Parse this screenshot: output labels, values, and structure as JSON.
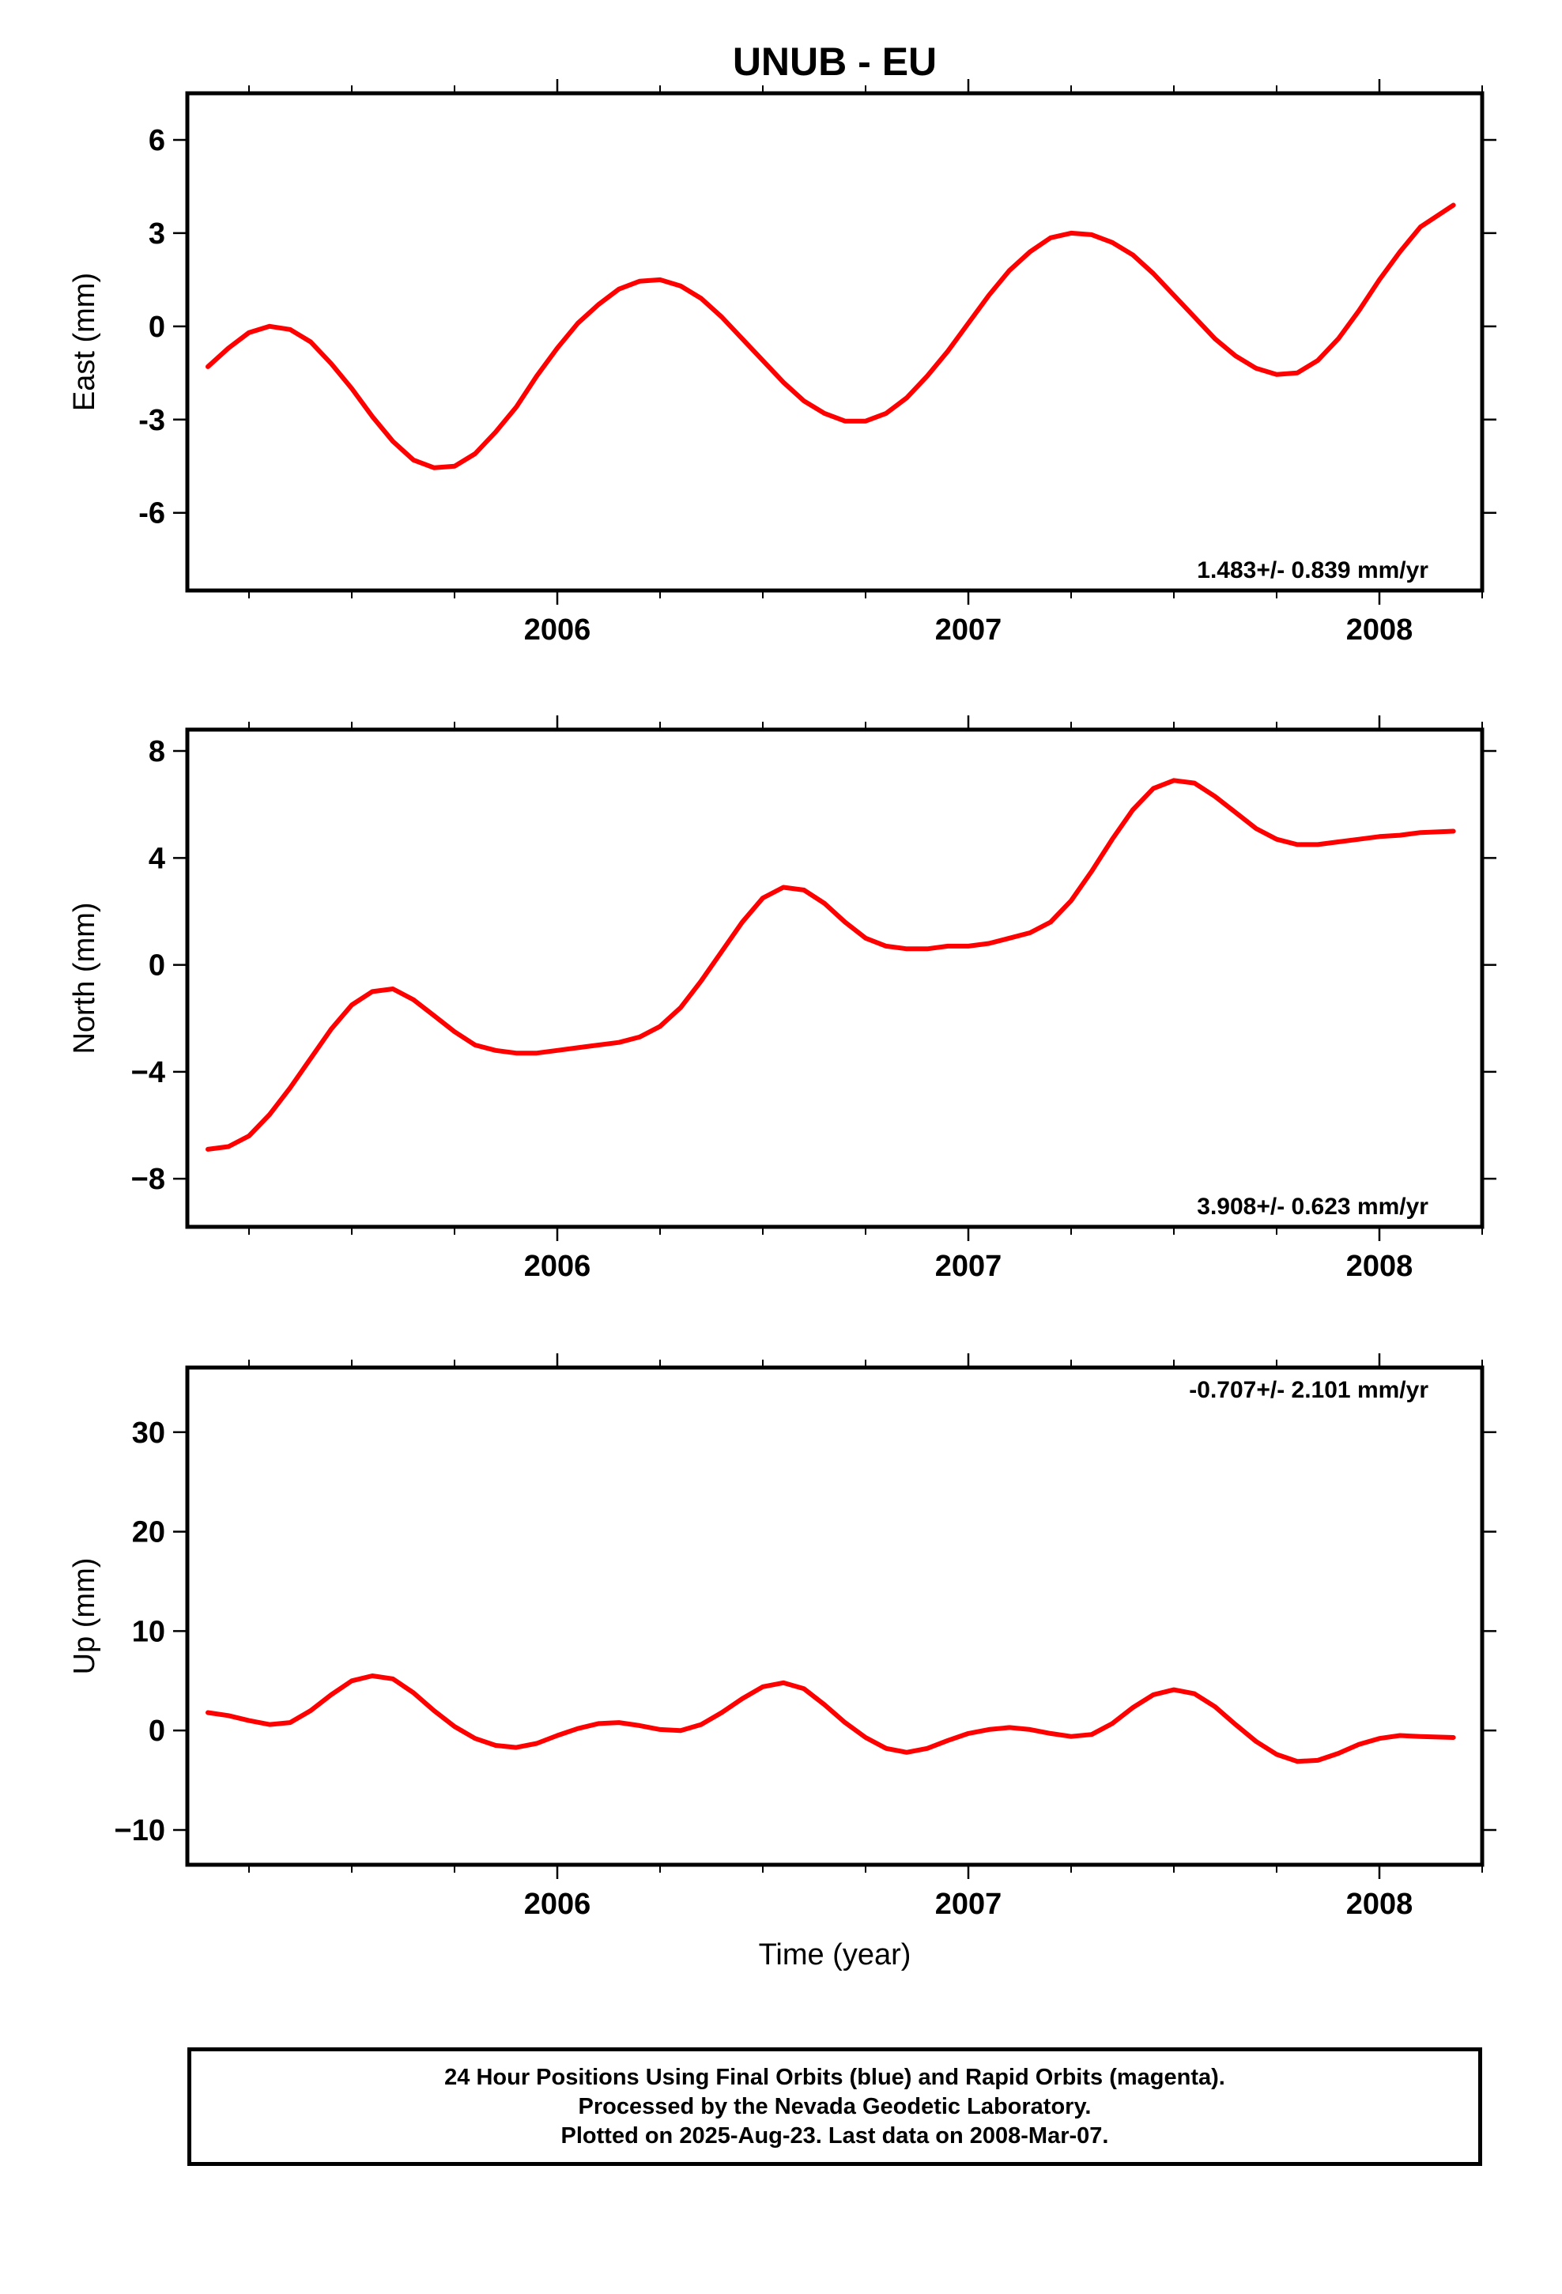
{
  "title": "UNUB - EU",
  "colors": {
    "data": "#0000ff",
    "fit": "#ff0000",
    "frame": "#000000"
  },
  "chart_data": [
    {
      "type": "scatter",
      "id": "east",
      "ylabel": "East (mm)",
      "ylim": [
        -8.5,
        7.5
      ],
      "yticks": [
        6,
        3,
        0,
        -3,
        -6
      ],
      "ytick_labels": [
        "6",
        "3",
        "0",
        "-3",
        "-6"
      ],
      "xlim": [
        2005.1,
        2008.25
      ],
      "xticks": [
        2006,
        2007,
        2008
      ],
      "xtick_labels": [
        "2006",
        "2007",
        "2008"
      ],
      "rate_label": "1.483+/- 0.839 mm/yr",
      "rate_position": "bottom-right",
      "series": [],
      "fit": {
        "x": [
          2005.15,
          2005.2,
          2005.25,
          2005.3,
          2005.35,
          2005.4,
          2005.45,
          2005.5,
          2005.55,
          2005.6,
          2005.65,
          2005.7,
          2005.75,
          2005.8,
          2005.85,
          2005.9,
          2005.95,
          2006.0,
          2006.05,
          2006.1,
          2006.15,
          2006.2,
          2006.25,
          2006.3,
          2006.35,
          2006.4,
          2006.45,
          2006.5,
          2006.55,
          2006.6,
          2006.65,
          2006.7,
          2006.75,
          2006.8,
          2006.85,
          2006.9,
          2006.95,
          2007.0,
          2007.05,
          2007.1,
          2007.15,
          2007.2,
          2007.25,
          2007.3,
          2007.35,
          2007.4,
          2007.45,
          2007.5,
          2007.55,
          2007.6,
          2007.65,
          2007.7,
          2007.75,
          2007.8,
          2007.85,
          2007.9,
          2007.95,
          2008.0,
          2008.05,
          2008.1,
          2008.18
        ],
        "y": [
          -1.3,
          -0.7,
          -0.2,
          0.0,
          -0.1,
          -0.5,
          -1.2,
          -2.0,
          -2.9,
          -3.7,
          -4.3,
          -4.55,
          -4.5,
          -4.1,
          -3.4,
          -2.6,
          -1.6,
          -0.7,
          0.1,
          0.7,
          1.2,
          1.45,
          1.5,
          1.3,
          0.9,
          0.3,
          -0.4,
          -1.1,
          -1.8,
          -2.4,
          -2.8,
          -3.05,
          -3.05,
          -2.8,
          -2.3,
          -1.6,
          -0.8,
          0.1,
          1.0,
          1.8,
          2.4,
          2.85,
          3.0,
          2.95,
          2.7,
          2.3,
          1.7,
          1.0,
          0.3,
          -0.4,
          -0.95,
          -1.35,
          -1.55,
          -1.5,
          -1.1,
          -0.4,
          0.5,
          1.5,
          2.4,
          3.2,
          3.9
        ]
      }
    },
    {
      "type": "scatter",
      "id": "north",
      "ylabel": "North (mm)",
      "ylim": [
        -9.8,
        8.8
      ],
      "yticks": [
        8,
        4,
        0,
        -4,
        -8
      ],
      "ytick_labels": [
        "8",
        "4",
        "0",
        "−4",
        "−8"
      ],
      "xlim": [
        2005.1,
        2008.25
      ],
      "xticks": [
        2006,
        2007,
        2008
      ],
      "xtick_labels": [
        "2006",
        "2007",
        "2008"
      ],
      "rate_label": "3.908+/- 0.623 mm/yr",
      "rate_position": "bottom-right",
      "series": [],
      "fit": {
        "x": [
          2005.15,
          2005.2,
          2005.25,
          2005.3,
          2005.35,
          2005.4,
          2005.45,
          2005.5,
          2005.55,
          2005.6,
          2005.65,
          2005.7,
          2005.75,
          2005.8,
          2005.85,
          2005.9,
          2005.95,
          2006.0,
          2006.05,
          2006.1,
          2006.15,
          2006.2,
          2006.25,
          2006.3,
          2006.35,
          2006.4,
          2006.45,
          2006.5,
          2006.55,
          2006.6,
          2006.65,
          2006.7,
          2006.75,
          2006.8,
          2006.85,
          2006.9,
          2006.95,
          2007.0,
          2007.05,
          2007.1,
          2007.15,
          2007.2,
          2007.25,
          2007.3,
          2007.35,
          2007.4,
          2007.45,
          2007.5,
          2007.55,
          2007.6,
          2007.65,
          2007.7,
          2007.75,
          2007.8,
          2007.85,
          2007.9,
          2007.95,
          2008.0,
          2008.05,
          2008.1,
          2008.18
        ],
        "y": [
          -6.9,
          -6.8,
          -6.4,
          -5.6,
          -4.6,
          -3.5,
          -2.4,
          -1.5,
          -1.0,
          -0.9,
          -1.3,
          -1.9,
          -2.5,
          -3.0,
          -3.2,
          -3.3,
          -3.3,
          -3.2,
          -3.1,
          -3.0,
          -2.9,
          -2.7,
          -2.3,
          -1.6,
          -0.6,
          0.5,
          1.6,
          2.5,
          2.9,
          2.8,
          2.3,
          1.6,
          1.0,
          0.7,
          0.6,
          0.6,
          0.7,
          0.7,
          0.8,
          1.0,
          1.2,
          1.6,
          2.4,
          3.5,
          4.7,
          5.8,
          6.6,
          6.9,
          6.8,
          6.3,
          5.7,
          5.1,
          4.7,
          4.5,
          4.5,
          4.6,
          4.7,
          4.8,
          4.85,
          4.95,
          5.0
        ]
      }
    },
    {
      "type": "scatter",
      "id": "up",
      "ylabel": "Up (mm)",
      "ylim": [
        -13.5,
        36.5
      ],
      "yticks": [
        30,
        20,
        10,
        0,
        -10
      ],
      "ytick_labels": [
        "30",
        "20",
        "10",
        "0",
        "−10"
      ],
      "xlim": [
        2005.1,
        2008.25
      ],
      "xticks": [
        2006,
        2007,
        2008
      ],
      "xtick_labels": [
        "2006",
        "2007",
        "2008"
      ],
      "xlabel": "Time (year)",
      "rate_label": "-0.707+/- 2.101 mm/yr",
      "rate_position": "top-right",
      "series": [],
      "fit": {
        "x": [
          2005.15,
          2005.2,
          2005.25,
          2005.3,
          2005.35,
          2005.4,
          2005.45,
          2005.5,
          2005.55,
          2005.6,
          2005.65,
          2005.7,
          2005.75,
          2005.8,
          2005.85,
          2005.9,
          2005.95,
          2006.0,
          2006.05,
          2006.1,
          2006.15,
          2006.2,
          2006.25,
          2006.3,
          2006.35,
          2006.4,
          2006.45,
          2006.5,
          2006.55,
          2006.6,
          2006.65,
          2006.7,
          2006.75,
          2006.8,
          2006.85,
          2006.9,
          2006.95,
          2007.0,
          2007.05,
          2007.1,
          2007.15,
          2007.2,
          2007.25,
          2007.3,
          2007.35,
          2007.4,
          2007.45,
          2007.5,
          2007.55,
          2007.6,
          2007.65,
          2007.7,
          2007.75,
          2007.8,
          2007.85,
          2007.9,
          2007.95,
          2008.0,
          2008.05,
          2008.1,
          2008.18
        ],
        "y": [
          1.8,
          1.5,
          1.0,
          0.6,
          0.8,
          2.0,
          3.6,
          5.0,
          5.5,
          5.2,
          3.8,
          2.0,
          0.4,
          -0.8,
          -1.5,
          -1.7,
          -1.3,
          -0.5,
          0.2,
          0.7,
          0.8,
          0.5,
          0.1,
          0.0,
          0.6,
          1.8,
          3.2,
          4.4,
          4.8,
          4.2,
          2.6,
          0.8,
          -0.7,
          -1.8,
          -2.2,
          -1.8,
          -1.0,
          -0.3,
          0.1,
          0.3,
          0.1,
          -0.3,
          -0.6,
          -0.4,
          0.7,
          2.3,
          3.6,
          4.1,
          3.7,
          2.4,
          0.6,
          -1.1,
          -2.4,
          -3.1,
          -3.0,
          -2.3,
          -1.4,
          -0.8,
          -0.5,
          -0.6,
          -0.7
        ]
      }
    }
  ],
  "caption": {
    "line1": "24 Hour Positions Using Final Orbits (blue) and Rapid Orbits (magenta).",
    "line2": "Processed by the Nevada Geodetic Laboratory.",
    "line3": "Plotted on 2025-Aug-23. Last data on 2008-Mar-07."
  }
}
